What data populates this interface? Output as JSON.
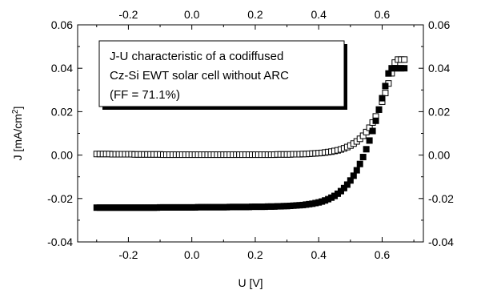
{
  "chart_data": {
    "type": "scatter",
    "xlabel": "U [V]",
    "ylabel": "J [mA/cm",
    "ylabel_sup": "2",
    "ylabel_close": "]",
    "xlim": [
      -0.36,
      0.73
    ],
    "ylim": [
      -0.04,
      0.06
    ],
    "x_ticks": [
      -0.2,
      0.0,
      0.2,
      0.4,
      0.6
    ],
    "x_tick_labels": [
      "-0.2",
      "0.0",
      "0.2",
      "0.4",
      "0.6"
    ],
    "y_ticks": [
      -0.04,
      -0.02,
      0.0,
      0.02,
      0.04,
      0.06
    ],
    "y_tick_labels": [
      "-0.04",
      "-0.02",
      "0.00",
      "0.02",
      "0.04",
      "0.06"
    ],
    "annotation": [
      "J-U characteristic of a codiffused",
      "Cz-Si EWT solar cell without ARC",
      "(FF = 71.1%)"
    ],
    "series": [
      {
        "marker": "open-square",
        "color": "#000000",
        "x": [
          -0.3,
          -0.29,
          -0.28,
          -0.27,
          -0.26,
          -0.25,
          -0.24,
          -0.23,
          -0.22,
          -0.21,
          -0.2,
          -0.19,
          -0.18,
          -0.17,
          -0.16,
          -0.15,
          -0.14,
          -0.13,
          -0.12,
          -0.11,
          -0.1,
          -0.09,
          -0.08,
          -0.07,
          -0.06,
          -0.05,
          -0.04,
          -0.03,
          -0.02,
          -0.01,
          0.0,
          0.01,
          0.02,
          0.03,
          0.04,
          0.05,
          0.06,
          0.07,
          0.08,
          0.09,
          0.1,
          0.11,
          0.12,
          0.13,
          0.14,
          0.15,
          0.16,
          0.17,
          0.18,
          0.19,
          0.2,
          0.21,
          0.22,
          0.23,
          0.24,
          0.25,
          0.26,
          0.27,
          0.28,
          0.29,
          0.3,
          0.31,
          0.32,
          0.33,
          0.34,
          0.35,
          0.36,
          0.37,
          0.38,
          0.39,
          0.4,
          0.41,
          0.42,
          0.43,
          0.44,
          0.45,
          0.46,
          0.47,
          0.48,
          0.49,
          0.5,
          0.51,
          0.52,
          0.53,
          0.54,
          0.55,
          0.56,
          0.57,
          0.58,
          0.59,
          0.6,
          0.61,
          0.62,
          0.63,
          0.64,
          0.65,
          0.66,
          0.67
        ],
        "y": [
          0.0005,
          0.0005,
          0.0005,
          0.0005,
          0.0005,
          0.0004,
          0.0004,
          0.0004,
          0.0004,
          0.0004,
          0.0004,
          0.0004,
          0.0003,
          0.0003,
          0.0003,
          0.0003,
          0.0003,
          0.0003,
          0.0003,
          0.0003,
          0.0003,
          0.0002,
          0.0002,
          0.0002,
          0.0002,
          0.0002,
          0.0002,
          0.0002,
          0.0002,
          0.0002,
          0.0002,
          0.0002,
          0.0002,
          0.0002,
          0.0002,
          0.0002,
          0.0002,
          0.0002,
          0.0002,
          0.0002,
          0.0002,
          0.0002,
          0.0002,
          0.0002,
          0.0002,
          0.0002,
          0.0002,
          0.0002,
          0.0002,
          0.0002,
          0.0002,
          0.0002,
          0.0002,
          0.0002,
          0.0002,
          0.0002,
          0.0002,
          0.0003,
          0.0003,
          0.0003,
          0.0003,
          0.0003,
          0.0004,
          0.0004,
          0.0004,
          0.0005,
          0.0005,
          0.0006,
          0.0007,
          0.0008,
          0.0009,
          0.001,
          0.0012,
          0.0014,
          0.0016,
          0.0019,
          0.0022,
          0.0026,
          0.0031,
          0.0037,
          0.0044,
          0.0053,
          0.0063,
          0.0075,
          0.0089,
          0.0106,
          0.0126,
          0.015,
          0.0178,
          0.021,
          0.0246,
          0.0286,
          0.033,
          0.0377,
          0.0426,
          0.044,
          0.044,
          0.044
        ]
      },
      {
        "marker": "filled-square",
        "color": "#000000",
        "x": [
          -0.3,
          -0.29,
          -0.28,
          -0.27,
          -0.26,
          -0.25,
          -0.24,
          -0.23,
          -0.22,
          -0.21,
          -0.2,
          -0.19,
          -0.18,
          -0.17,
          -0.16,
          -0.15,
          -0.14,
          -0.13,
          -0.12,
          -0.11,
          -0.1,
          -0.09,
          -0.08,
          -0.07,
          -0.06,
          -0.05,
          -0.04,
          -0.03,
          -0.02,
          -0.01,
          0.0,
          0.01,
          0.02,
          0.03,
          0.04,
          0.05,
          0.06,
          0.07,
          0.08,
          0.09,
          0.1,
          0.11,
          0.12,
          0.13,
          0.14,
          0.15,
          0.16,
          0.17,
          0.18,
          0.19,
          0.2,
          0.21,
          0.22,
          0.23,
          0.24,
          0.25,
          0.26,
          0.27,
          0.28,
          0.29,
          0.3,
          0.31,
          0.32,
          0.33,
          0.34,
          0.35,
          0.36,
          0.37,
          0.38,
          0.39,
          0.4,
          0.41,
          0.42,
          0.43,
          0.44,
          0.45,
          0.46,
          0.47,
          0.48,
          0.49,
          0.5,
          0.51,
          0.52,
          0.53,
          0.54,
          0.55,
          0.56,
          0.57,
          0.58,
          0.59,
          0.6,
          0.61,
          0.62,
          0.63,
          0.64,
          0.65,
          0.66,
          0.67
        ],
        "y": [
          -0.0242,
          -0.0242,
          -0.0242,
          -0.0242,
          -0.0242,
          -0.0242,
          -0.0242,
          -0.0242,
          -0.0242,
          -0.0242,
          -0.0242,
          -0.0242,
          -0.0242,
          -0.0242,
          -0.0242,
          -0.0242,
          -0.0242,
          -0.0242,
          -0.0242,
          -0.0242,
          -0.0241,
          -0.0241,
          -0.0241,
          -0.0241,
          -0.0241,
          -0.0241,
          -0.0241,
          -0.0241,
          -0.0241,
          -0.0241,
          -0.0241,
          -0.0241,
          -0.024,
          -0.024,
          -0.024,
          -0.024,
          -0.024,
          -0.024,
          -0.024,
          -0.024,
          -0.024,
          -0.024,
          -0.0239,
          -0.0239,
          -0.0239,
          -0.0239,
          -0.0239,
          -0.0239,
          -0.0239,
          -0.0238,
          -0.0238,
          -0.0238,
          -0.0238,
          -0.0238,
          -0.0237,
          -0.0237,
          -0.0237,
          -0.0236,
          -0.0236,
          -0.0235,
          -0.0235,
          -0.0234,
          -0.0233,
          -0.0232,
          -0.0231,
          -0.023,
          -0.0228,
          -0.0226,
          -0.0224,
          -0.0221,
          -0.0218,
          -0.0214,
          -0.0209,
          -0.0203,
          -0.0196,
          -0.0188,
          -0.0178,
          -0.0166,
          -0.0152,
          -0.0136,
          -0.0117,
          -0.0095,
          -0.007,
          -0.0041,
          -0.0009,
          0.0027,
          0.0067,
          0.0111,
          0.0158,
          0.0209,
          0.0262,
          0.0318,
          0.0376,
          0.04,
          0.04,
          0.04,
          0.04,
          0.04
        ]
      }
    ]
  }
}
